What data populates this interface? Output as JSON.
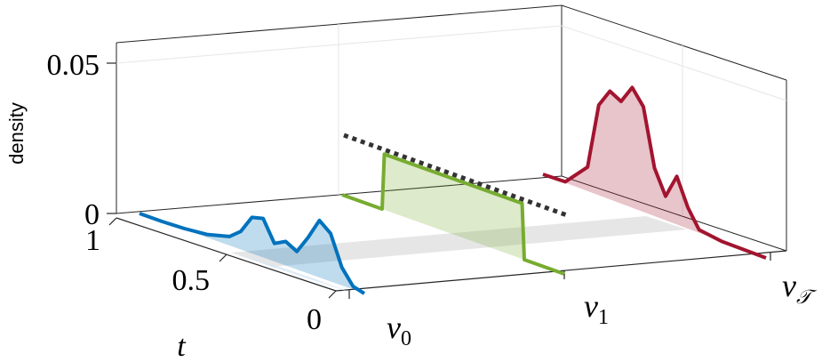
{
  "chart_data": {
    "type": "line",
    "title": "",
    "ylabel": "density",
    "tlabel": "t",
    "zlim": [
      0,
      0.05
    ],
    "z_ticks": [
      "0",
      "0.05"
    ],
    "t_ticks": [
      "1",
      "0.5",
      "0"
    ],
    "slice_labels": {
      "v0": {
        "base": "v",
        "sub": "0"
      },
      "v1": {
        "base": "v",
        "sub": "1"
      },
      "vT": {
        "base": "v",
        "sub": "𝒯"
      }
    },
    "grid": true,
    "colors": {
      "v0": "#0072bd",
      "v1": "#77ac30",
      "vT": "#a2142f",
      "dashed": "#333333"
    },
    "series": [
      {
        "slice": "v0",
        "x": [
          0,
          0.1,
          0.2,
          0.3,
          0.4,
          0.45,
          0.5,
          0.55,
          0.6,
          0.65,
          0.7,
          0.75,
          0.8,
          0.85,
          0.9,
          0.95,
          1.0
        ],
        "values": [
          0,
          0,
          0.0003,
          0.001,
          0.003,
          0.006,
          0.012,
          0.013,
          0.006,
          0.008,
          0.006,
          0.012,
          0.019,
          0.016,
          0.006,
          0.001,
          0
        ]
      },
      {
        "slice": "v1",
        "x": [
          0,
          0.18,
          0.19,
          0.81,
          0.82,
          1.0
        ],
        "values": [
          0,
          0,
          0.0185,
          0.0185,
          0,
          0
        ]
      },
      {
        "slice": "vT",
        "x": [
          0,
          0.1,
          0.2,
          0.25,
          0.3,
          0.35,
          0.4,
          0.45,
          0.5,
          0.55,
          0.6,
          0.65,
          0.7,
          0.8,
          0.9,
          1.0
        ],
        "values": [
          0,
          0.0003,
          0.008,
          0.03,
          0.036,
          0.034,
          0.04,
          0.035,
          0.016,
          0.008,
          0.016,
          0.007,
          0.001,
          0,
          0,
          0
        ]
      }
    ]
  }
}
